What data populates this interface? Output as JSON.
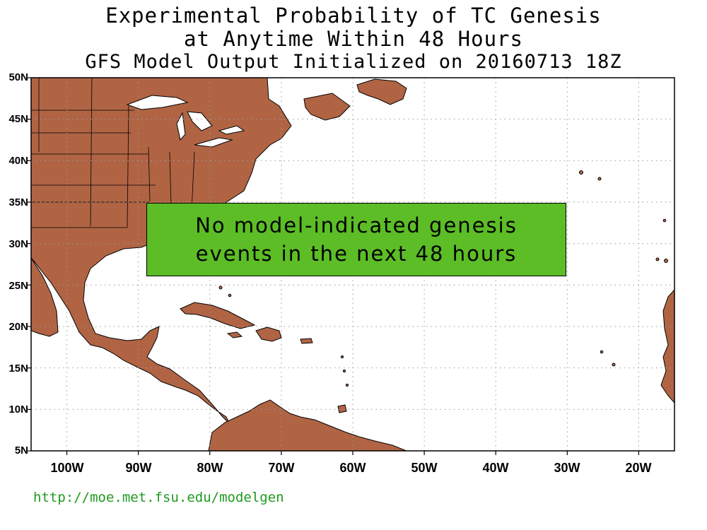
{
  "title": {
    "line1": "Experimental Probability of TC Genesis",
    "line2": "at Anytime Within 48 Hours",
    "line3": "GFS Model Output Initialized on 20160713 18Z"
  },
  "map": {
    "region": "Atlantic basin",
    "lon_range": [
      -105,
      -15
    ],
    "lat_range": [
      5,
      50
    ],
    "land_color": "#b06444",
    "ocean_color": "#ffffff",
    "grid": "dotted",
    "lat_labels": [
      "50N",
      "45N",
      "40N",
      "35N",
      "30N",
      "25N",
      "20N",
      "15N",
      "10N",
      "5N"
    ],
    "lon_labels": [
      "100W",
      "90W",
      "80W",
      "70W",
      "60W",
      "50W",
      "40W",
      "30W",
      "20W"
    ]
  },
  "message": {
    "line1": "No model-indicated genesis",
    "line2": "events in the next 48 hours",
    "box_color": "#5cbd26"
  },
  "footer": {
    "url": "http://moe.met.fsu.edu/modelgen",
    "url_color": "#1f9a1f"
  }
}
